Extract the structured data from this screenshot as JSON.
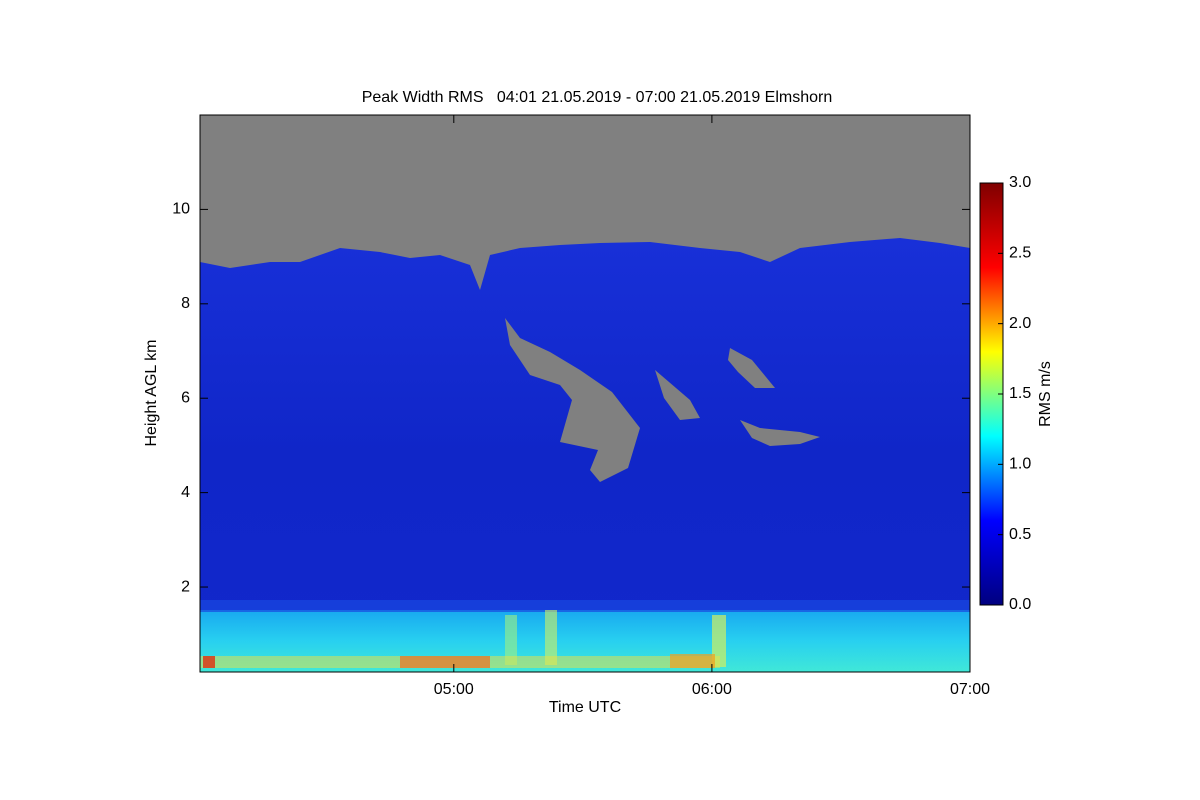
{
  "chart_data": {
    "type": "heatmap",
    "title": "Peak Width RMS   04:01 21.05.2019 - 07:00 21.05.2019 Elmshorn",
    "x_label": "Time UTC",
    "y_label": "Height AGL km",
    "colorbar_label": "RMS m/s",
    "xlim": [
      241,
      420
    ],
    "xticks": [
      {
        "value": 300,
        "label": "05:00"
      },
      {
        "value": 360,
        "label": "06:00"
      },
      {
        "value": 420,
        "label": "07:00"
      }
    ],
    "ylim": [
      0.2,
      12
    ],
    "yticks": [
      2,
      4,
      6,
      8,
      10
    ],
    "clim": [
      0,
      3
    ],
    "cticks": [
      {
        "value": 0,
        "label": "0.0"
      },
      0.5,
      {
        "value": 1,
        "label": "1.0"
      },
      1.5,
      {
        "value": 2,
        "label": "2.0"
      },
      2.5,
      {
        "value": 3,
        "label": "3.0"
      }
    ],
    "colormap": [
      "#00007f",
      "#0000ff",
      "#00ffff",
      "#ffff00",
      "#ff0000",
      "#7f0000"
    ]
  }
}
